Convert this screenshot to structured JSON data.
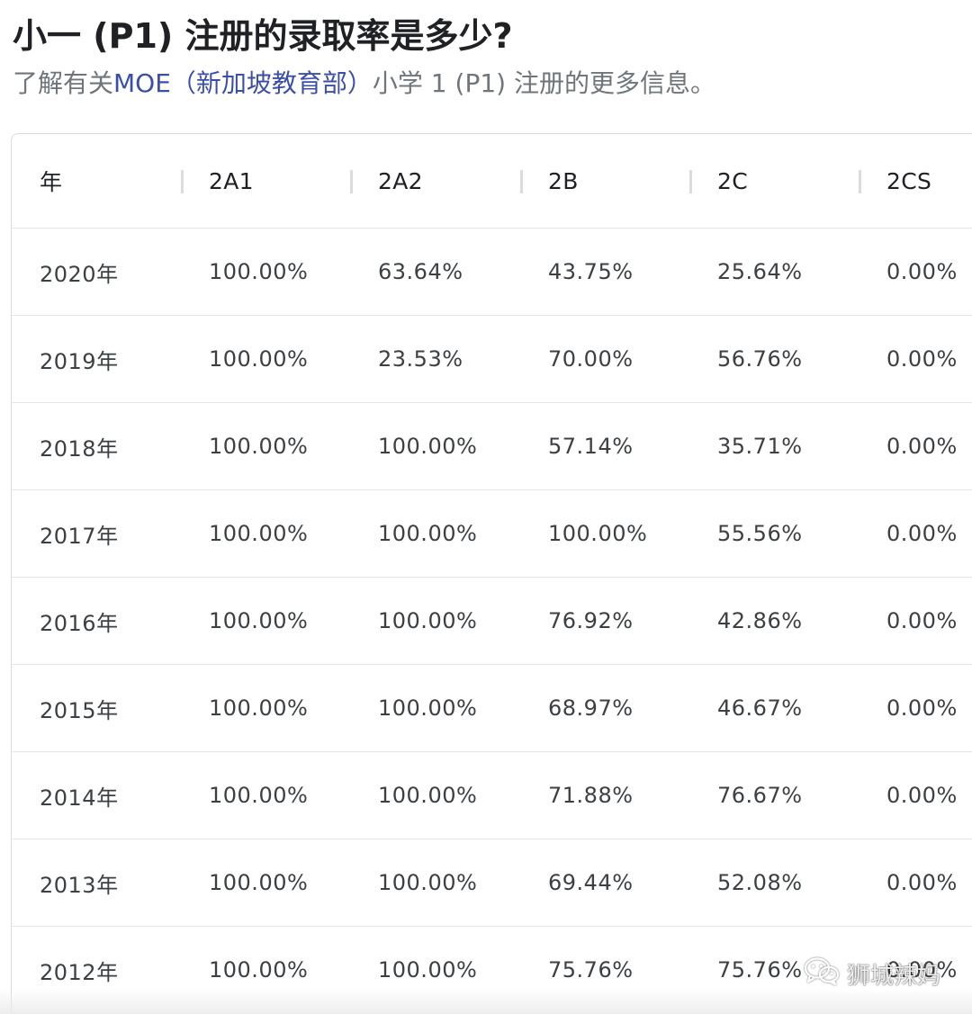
{
  "heading": {
    "title": "小一 (P1) 注册的录取率是多少?",
    "subtitle_prefix": "了解有关",
    "subtitle_link": "MOE（新加坡教育部）",
    "subtitle_suffix": "小学 1 (P1) 注册的更多信息。"
  },
  "table": {
    "headers": [
      "年",
      "2A1",
      "2A2",
      "2B",
      "2C",
      "2CS"
    ],
    "rows": [
      [
        "2020年",
        "100.00%",
        "63.64%",
        "43.75%",
        "25.64%",
        "0.00%"
      ],
      [
        "2019年",
        "100.00%",
        "23.53%",
        "70.00%",
        "56.76%",
        "0.00%"
      ],
      [
        "2018年",
        "100.00%",
        "100.00%",
        "57.14%",
        "35.71%",
        "0.00%"
      ],
      [
        "2017年",
        "100.00%",
        "100.00%",
        "100.00%",
        "55.56%",
        "0.00%"
      ],
      [
        "2016年",
        "100.00%",
        "100.00%",
        "76.92%",
        "42.86%",
        "0.00%"
      ],
      [
        "2015年",
        "100.00%",
        "100.00%",
        "68.97%",
        "46.67%",
        "0.00%"
      ],
      [
        "2014年",
        "100.00%",
        "100.00%",
        "71.88%",
        "76.67%",
        "0.00%"
      ],
      [
        "2013年",
        "100.00%",
        "100.00%",
        "69.44%",
        "52.08%",
        "0.00%"
      ],
      [
        "2012年",
        "100.00%",
        "100.00%",
        "75.76%",
        "75.76%",
        "0.00%"
      ]
    ]
  },
  "watermark": {
    "text": "狮城辣妈",
    "icon": "wechat-icon"
  },
  "colors": {
    "link": "#3c4fa8",
    "text": "#202124",
    "muted": "#70757a",
    "border": "#dadce0"
  }
}
